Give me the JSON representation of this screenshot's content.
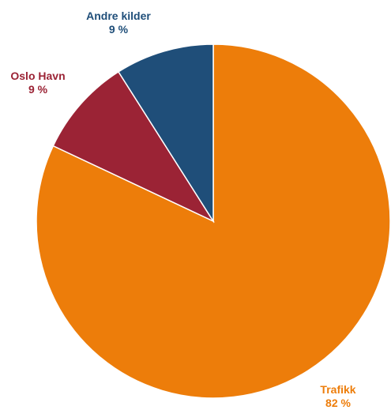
{
  "chart_data": {
    "type": "pie",
    "start_angle_deg": 0,
    "direction": "clockwise",
    "slices": [
      {
        "label": "Trafikk",
        "value": 82,
        "value_label": "82 %",
        "color": "#ED7D0A"
      },
      {
        "label": "Oslo Havn",
        "value": 9,
        "value_label": "9 %",
        "color": "#9B2335"
      },
      {
        "label": "Andre kilder",
        "value": 9,
        "value_label": "9 %",
        "color": "#1F4E79"
      }
    ]
  }
}
